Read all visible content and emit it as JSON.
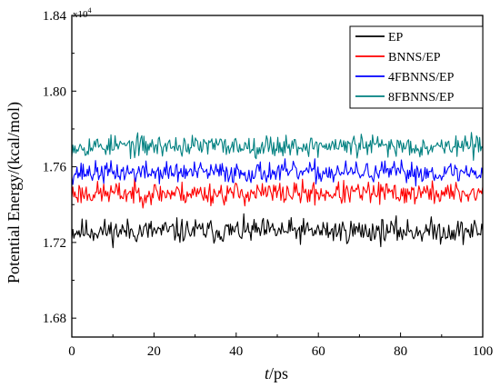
{
  "chart_data": {
    "type": "line",
    "title": "",
    "xlabel_italic": "t",
    "xlabel_rest": "/ps",
    "ylabel": "Potential Energy/(kcal/mol)",
    "multiplier_base": "x10",
    "multiplier_exp": "4",
    "xlim": [
      0,
      100
    ],
    "ylim": [
      1.67,
      1.84
    ],
    "xticks": [
      0,
      20,
      40,
      60,
      80,
      100
    ],
    "xtick_labels": [
      "0",
      "20",
      "40",
      "60",
      "80",
      "100"
    ],
    "yticks": [
      1.68,
      1.72,
      1.76,
      1.8,
      1.84
    ],
    "ytick_labels": [
      "1.68",
      "1.72",
      "1.76",
      "1.80",
      "1.84"
    ],
    "grid": false,
    "legend_position": "top-right",
    "series": [
      {
        "name": "EP",
        "color": "#000000",
        "mean": 1.726,
        "noise": 0.0032,
        "seed": 11
      },
      {
        "name": "BNNS/EP",
        "color": "#ff0000",
        "mean": 1.746,
        "noise": 0.003,
        "seed": 23
      },
      {
        "name": "4FBNNS/EP",
        "color": "#0000ff",
        "mean": 1.757,
        "noise": 0.0028,
        "seed": 37
      },
      {
        "name": "8FBNNS/EP",
        "color": "#008080",
        "mean": 1.771,
        "noise": 0.0028,
        "seed": 53
      }
    ],
    "points_per_series": 400
  }
}
